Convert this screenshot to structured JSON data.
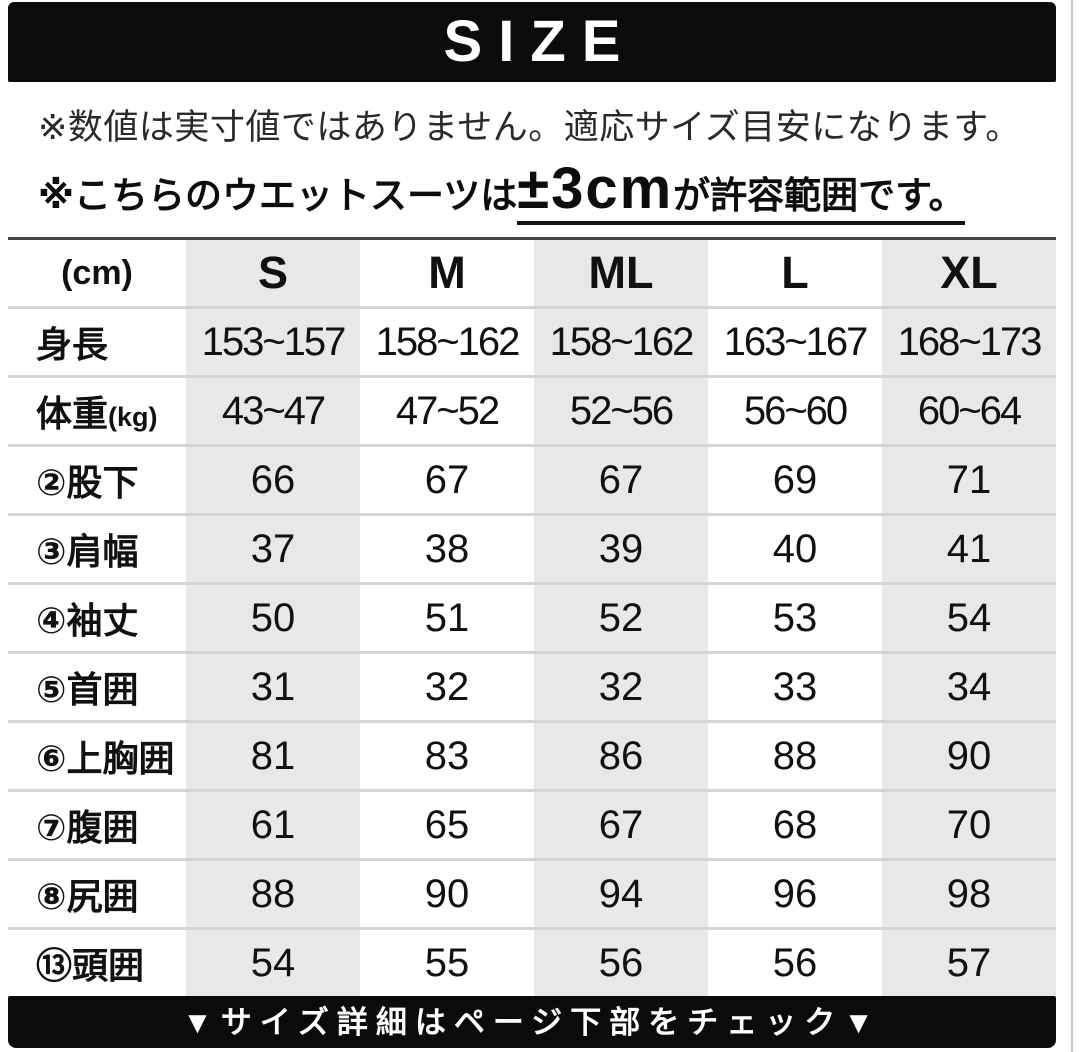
{
  "header": {
    "title": "SIZE"
  },
  "notes": {
    "line1": "※数値は実寸値ではありません。適応サイズ目安になります。",
    "line2_prefix": "※こちらのウエットスーツは",
    "line2_highlight": "±3cm",
    "line2_suffix": "が許容範囲です。"
  },
  "table": {
    "unit_label": "(cm)",
    "columns": [
      "S",
      "M",
      "ML",
      "L",
      "XL"
    ],
    "shaded_columns": [
      "S",
      "ML",
      "XL"
    ],
    "rows": [
      {
        "label": "身長",
        "label_suffix": "",
        "compact": true,
        "values": [
          "153~157",
          "158~162",
          "158~162",
          "163~167",
          "168~173"
        ]
      },
      {
        "label": "体重",
        "label_suffix": "(kg)",
        "compact": true,
        "values": [
          "43~47",
          "47~52",
          "52~56",
          "56~60",
          "60~64"
        ]
      },
      {
        "label": "②股下",
        "label_suffix": "",
        "values": [
          "66",
          "67",
          "67",
          "69",
          "71"
        ]
      },
      {
        "label": "③肩幅",
        "label_suffix": "",
        "values": [
          "37",
          "38",
          "39",
          "40",
          "41"
        ]
      },
      {
        "label": "④袖丈",
        "label_suffix": "",
        "values": [
          "50",
          "51",
          "52",
          "53",
          "54"
        ]
      },
      {
        "label": "⑤首囲",
        "label_suffix": "",
        "values": [
          "31",
          "32",
          "32",
          "33",
          "34"
        ]
      },
      {
        "label": "⑥上胸囲",
        "label_suffix": "",
        "values": [
          "81",
          "83",
          "86",
          "88",
          "90"
        ]
      },
      {
        "label": "⑦腹囲",
        "label_suffix": "",
        "values": [
          "61",
          "65",
          "67",
          "68",
          "70"
        ]
      },
      {
        "label": "⑧尻囲",
        "label_suffix": "",
        "values": [
          "88",
          "90",
          "94",
          "96",
          "98"
        ]
      },
      {
        "label": "⑬頭囲",
        "label_suffix": "",
        "values": [
          "54",
          "55",
          "56",
          "56",
          "57"
        ]
      }
    ]
  },
  "footer": {
    "text": "▼サイズ詳細はページ下部をチェック▼"
  },
  "colors": {
    "bar_black": "#0b0b0b",
    "cell_gray": "#e8e8e8",
    "row_separator": "#d5d5d5",
    "table_top_border": "#444444"
  }
}
